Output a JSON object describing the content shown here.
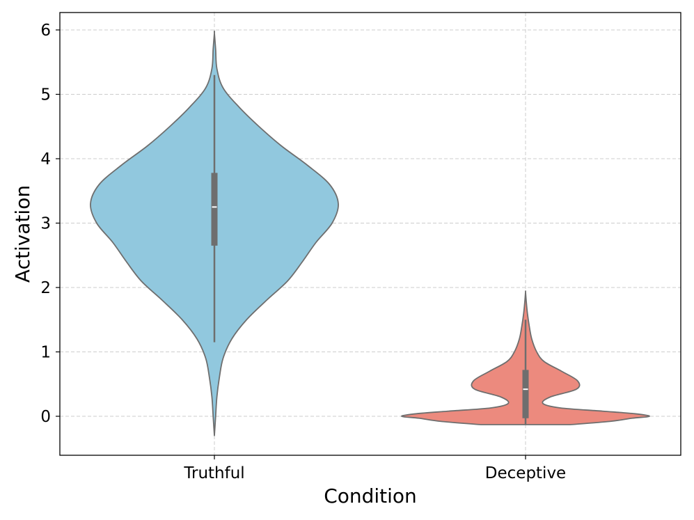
{
  "chart_data": {
    "type": "violin",
    "title": "",
    "xlabel": "Condition",
    "ylabel": "Activation",
    "ylim": [
      -0.6,
      6.3
    ],
    "yticks": [
      0,
      1,
      2,
      3,
      4,
      5,
      6
    ],
    "grid": true,
    "grid_style": "dashed",
    "categories": [
      "Truthful",
      "Deceptive"
    ],
    "series": [
      {
        "category": "Truthful",
        "color": "#91c8de",
        "edge_color": "#6e6e6e",
        "median": 3.25,
        "q1": 2.65,
        "q3": 3.78,
        "whisker_low": 1.15,
        "whisker_high": 5.3,
        "min": -0.3,
        "max": 5.95,
        "density_profile": [
          [
            -0.3,
            0.0
          ],
          [
            0.0,
            0.01
          ],
          [
            0.3,
            0.02
          ],
          [
            0.6,
            0.04
          ],
          [
            0.9,
            0.07
          ],
          [
            1.2,
            0.14
          ],
          [
            1.5,
            0.26
          ],
          [
            1.8,
            0.42
          ],
          [
            2.1,
            0.59
          ],
          [
            2.4,
            0.71
          ],
          [
            2.7,
            0.82
          ],
          [
            3.0,
            0.95
          ],
          [
            3.3,
            1.0
          ],
          [
            3.6,
            0.93
          ],
          [
            3.9,
            0.75
          ],
          [
            4.2,
            0.54
          ],
          [
            4.5,
            0.36
          ],
          [
            4.8,
            0.2
          ],
          [
            5.1,
            0.07
          ],
          [
            5.4,
            0.02
          ],
          [
            5.7,
            0.01
          ],
          [
            5.95,
            0.0
          ]
        ]
      },
      {
        "category": "Deceptive",
        "color": "#ec8a7e",
        "edge_color": "#6e6e6e",
        "median": 0.42,
        "q1": -0.03,
        "q3": 0.72,
        "whisker_low": -0.13,
        "whisker_high": 1.5,
        "min": -0.13,
        "max": 1.93,
        "density_profile": [
          [
            -0.13,
            0.36
          ],
          [
            -0.08,
            0.68
          ],
          [
            -0.03,
            0.86
          ],
          [
            0.0,
            1.0
          ],
          [
            0.04,
            0.88
          ],
          [
            0.08,
            0.62
          ],
          [
            0.13,
            0.28
          ],
          [
            0.2,
            0.14
          ],
          [
            0.3,
            0.2
          ],
          [
            0.42,
            0.41
          ],
          [
            0.55,
            0.42
          ],
          [
            0.7,
            0.29
          ],
          [
            0.85,
            0.15
          ],
          [
            1.0,
            0.09
          ],
          [
            1.2,
            0.05
          ],
          [
            1.4,
            0.03
          ],
          [
            1.6,
            0.015
          ],
          [
            1.8,
            0.005
          ],
          [
            1.93,
            0.0
          ]
        ]
      }
    ]
  }
}
